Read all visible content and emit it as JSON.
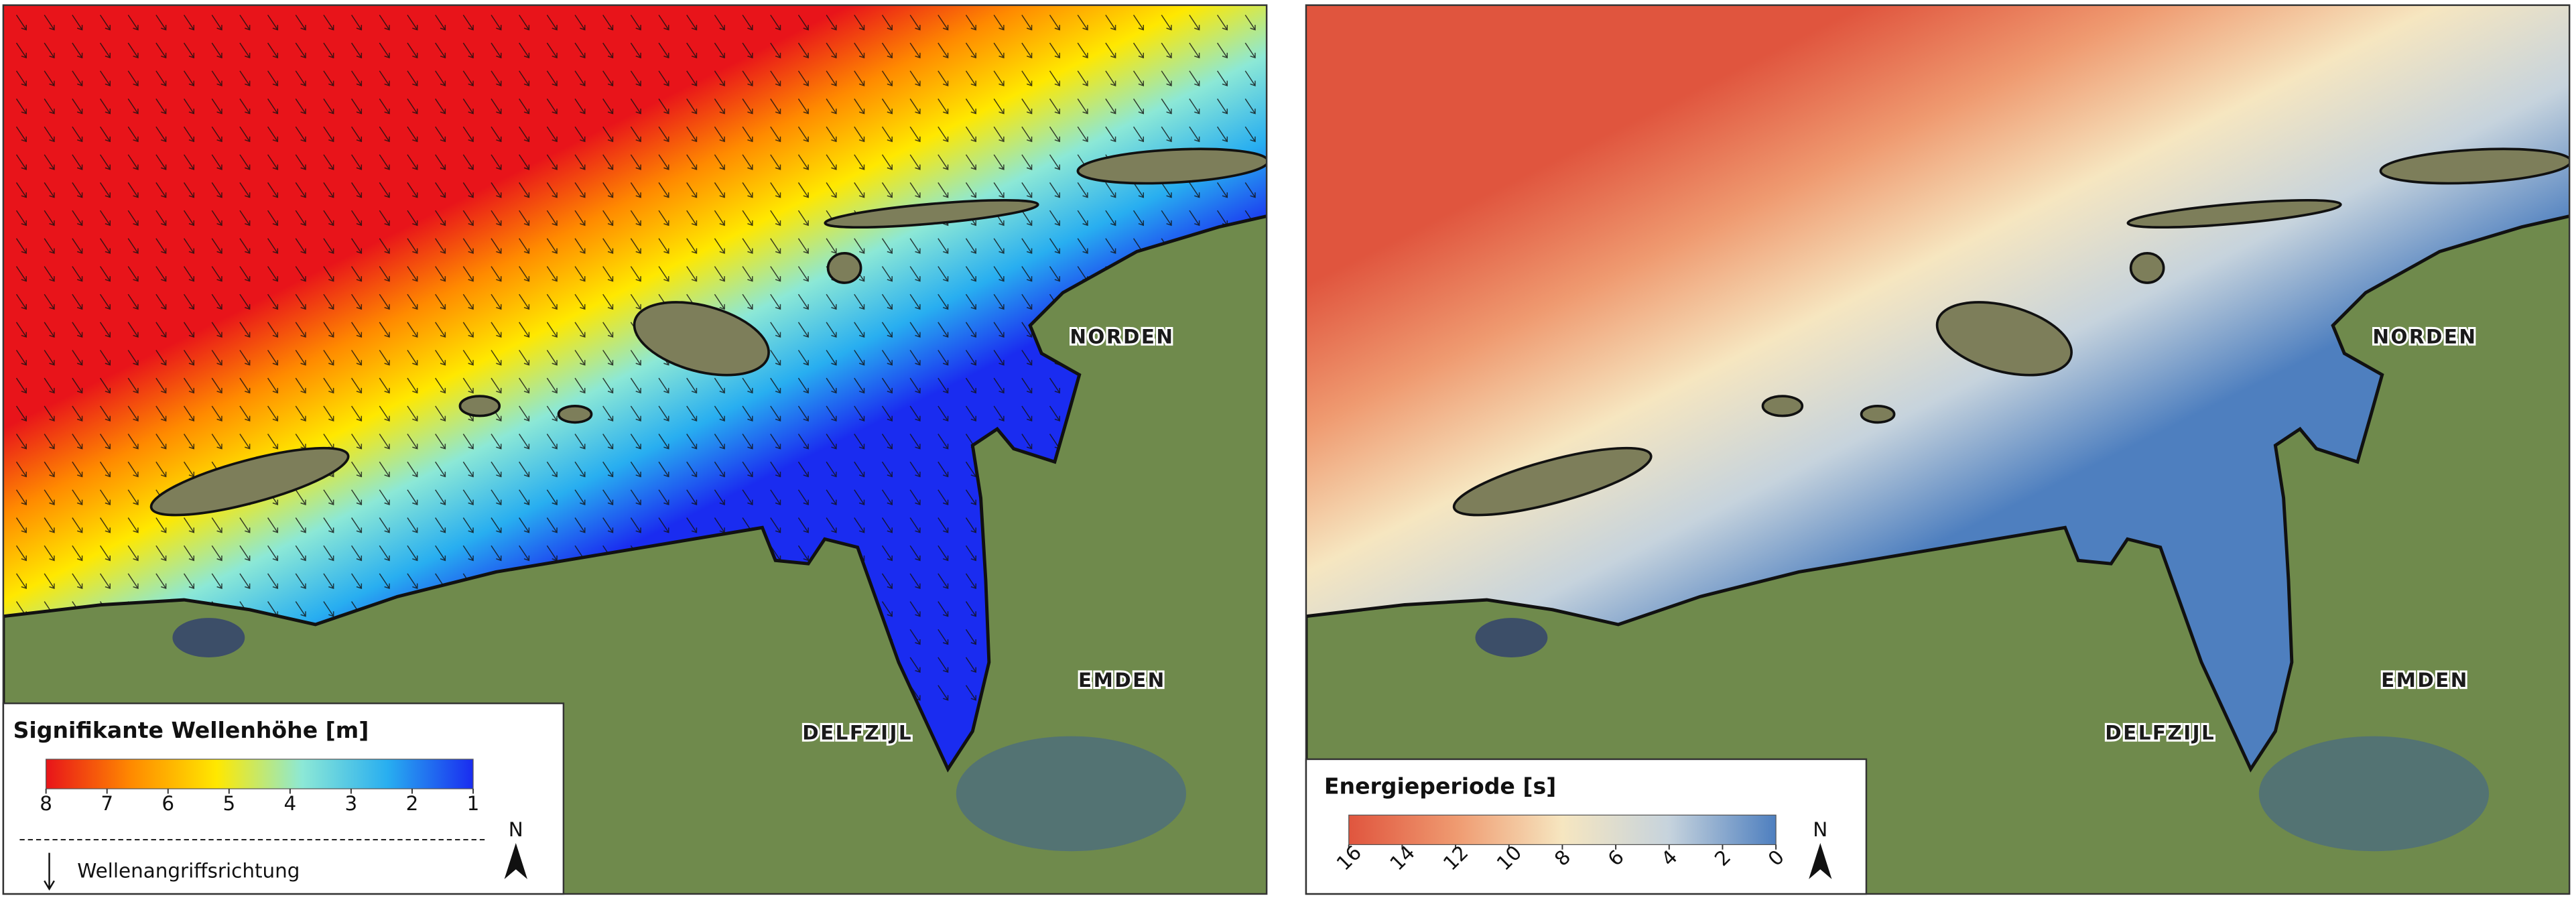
{
  "maps": [
    {
      "legend": {
        "title": "Signifikante Wellenhöhe [m]",
        "range": [
          8,
          1
        ],
        "ticks": [
          8,
          7,
          6,
          5,
          4,
          3,
          2,
          1
        ],
        "colors": [
          "#e8141a",
          "#ff8a00",
          "#ffe800",
          "#8ce8d6",
          "#28aef0",
          "#1a2cf0"
        ]
      },
      "places": [
        "NORDEN",
        "EMDEN",
        "DELFZIJL"
      ],
      "direction_label": "Wellenangriffsrichtung",
      "north": "N"
    },
    {
      "legend": {
        "title": "Energieperiode [s]",
        "range": [
          16,
          0
        ],
        "ticks": [
          16,
          14,
          12,
          10,
          8,
          6,
          4,
          2,
          0
        ],
        "colors": [
          "#e0553e",
          "#ef9a70",
          "#f6e6c0",
          "#c6d3dd",
          "#4e7fbf"
        ]
      },
      "places": [
        "NORDEN",
        "EMDEN",
        "DELFZIJL"
      ],
      "north": "N"
    }
  ]
}
